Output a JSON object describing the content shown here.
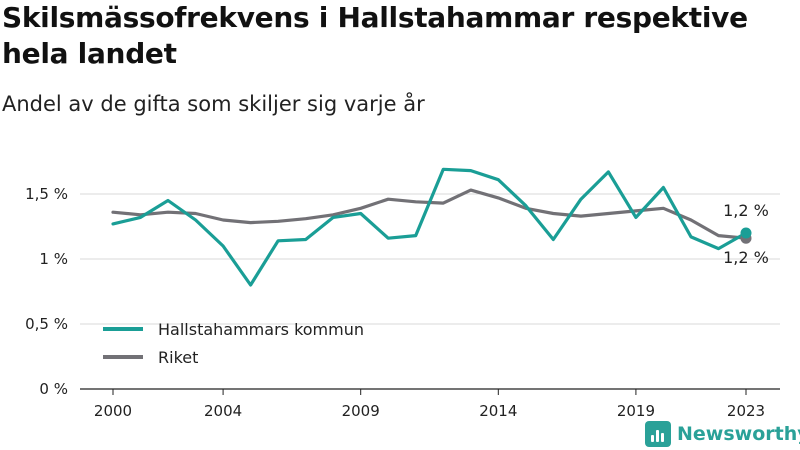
{
  "header": {
    "title": "Skilsmässofrekvens i Hallstahammar respektive hela landet",
    "subtitle": "Andel av de gifta som skiljer sig varje år"
  },
  "brand": {
    "name": "Newsworthy",
    "icon": "bar-chart-icon"
  },
  "colors": {
    "kommun": "#1a9e96",
    "riket": "#727176",
    "grid": "#d9d9d9",
    "axis": "#222222"
  },
  "chart_data": {
    "type": "line",
    "x": [
      2000,
      2001,
      2002,
      2003,
      2004,
      2005,
      2006,
      2007,
      2008,
      2009,
      2010,
      2011,
      2012,
      2013,
      2014,
      2015,
      2016,
      2017,
      2018,
      2019,
      2020,
      2021,
      2022,
      2023
    ],
    "xticks": [
      2000,
      2004,
      2009,
      2014,
      2019,
      2023
    ],
    "xtick_labels": [
      "2000",
      "2004",
      "2009",
      "2014",
      "2019",
      "2023"
    ],
    "xlim": [
      2000,
      2023
    ],
    "ylim": [
      0,
      1.5
    ],
    "yticks": [
      0,
      0.5,
      1,
      1.5
    ],
    "ytick_labels": [
      "0 %",
      "0,5 %",
      "1 %",
      "1,5 %"
    ],
    "grid": "horizontal",
    "legend_position": "bottom-left",
    "series": [
      {
        "name": "Hallstahammars kommun",
        "color": "#1a9e96",
        "values": [
          1.27,
          1.32,
          1.45,
          1.3,
          1.1,
          0.8,
          1.14,
          1.15,
          1.32,
          1.35,
          1.16,
          1.18,
          1.69,
          1.68,
          1.61,
          1.41,
          1.15,
          1.46,
          1.67,
          1.32,
          1.55,
          1.17,
          1.08,
          1.2
        ],
        "end_label": "1,2 %"
      },
      {
        "name": "Riket",
        "color": "#727176",
        "values": [
          1.36,
          1.34,
          1.36,
          1.35,
          1.3,
          1.28,
          1.29,
          1.31,
          1.34,
          1.39,
          1.46,
          1.44,
          1.43,
          1.53,
          1.47,
          1.39,
          1.35,
          1.33,
          1.35,
          1.37,
          1.39,
          1.3,
          1.18,
          1.16
        ],
        "end_label": "1,2 %"
      }
    ]
  }
}
